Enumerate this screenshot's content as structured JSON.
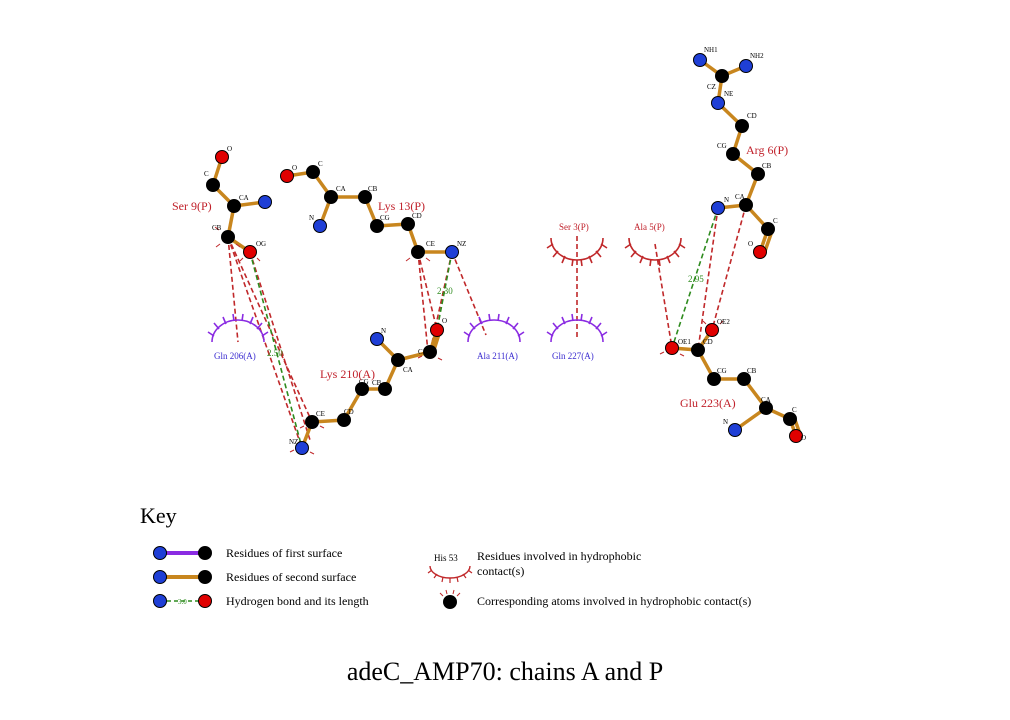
{
  "title": "adeC_AMP70: chains A and P",
  "colors": {
    "bond": "#c8861e",
    "first_surface_bond": "#8a2be2",
    "carbon": "#000000",
    "nitrogen": "#1f3fd6",
    "oxygen": "#e00000",
    "hbond": "#2e8b1e",
    "hydrophobic_red": "#c0282a",
    "hydrophobic_purple": "#8a2be2",
    "residue_label": "#c0202a",
    "chain_a_label": "#3a2bd0"
  },
  "residues": {
    "ser9": "Ser 9(P)",
    "lys13": "Lys 13(P)",
    "arg6": "Arg 6(P)",
    "lys210": "Lys 210(A)",
    "glu223": "Glu 223(A)",
    "gln206": "Gln 206(A)",
    "ala211": "Ala 211(A)",
    "gln227": "Gln 227(A)",
    "ser3": "Ser 3(P)",
    "ala5": "Ala 5(P)"
  },
  "atoms": {
    "O": "O",
    "C": "C",
    "CA": "CA",
    "CB": "CB",
    "CG": "CG",
    "CD": "CD",
    "CE": "CE",
    "N": "N",
    "NZ": "NZ",
    "OG": "OG",
    "NE": "NE",
    "CZ": "CZ",
    "NH1": "NH1",
    "NH2": "NH2",
    "OE2": "OE2",
    "OE1": "OE1"
  },
  "hbonds": {
    "ser9_lys210": "2.50",
    "lys13_lys210": "2.30",
    "arg6_glu223": "2.95"
  },
  "key": {
    "heading": "Key",
    "first_surface": "Residues of first surface",
    "second_surface": "Residues of second surface",
    "hbond": "Hydrogen bond and its length",
    "hbond_sample": "3.0",
    "hydrophobic_sample": "His 53",
    "hydrophobic_line1": "Residues involved in hydrophobic",
    "hydrophobic_line2": "contact(s)",
    "hydrophobic_atoms": "Corresponding atoms involved in hydrophobic contact(s)"
  }
}
